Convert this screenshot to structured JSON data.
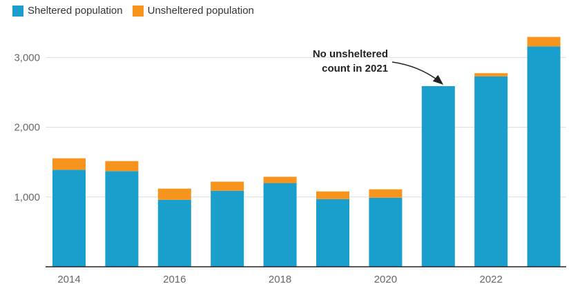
{
  "chart_data": {
    "type": "bar",
    "stacked": true,
    "years": [
      2014,
      2015,
      2016,
      2017,
      2018,
      2019,
      2020,
      2021,
      2022,
      2023
    ],
    "x_tick_labels": [
      "2014",
      "2016",
      "2018",
      "2020",
      "2022"
    ],
    "x_tick_years": [
      2014,
      2016,
      2018,
      2020,
      2022
    ],
    "y_ticks": [
      1000,
      2000,
      3000
    ],
    "y_tick_labels": [
      "1,000",
      "2,000",
      "3,000"
    ],
    "ylim": [
      0,
      3350
    ],
    "grid": true,
    "legend_position": "top-left",
    "series": [
      {
        "name": "Sheltered population",
        "color": "#1a9fcd",
        "values": [
          1390,
          1370,
          960,
          1090,
          1200,
          970,
          990,
          2590,
          2730,
          3160
        ]
      },
      {
        "name": "Unsheltered population",
        "color": "#f7941d",
        "values": [
          165,
          145,
          160,
          130,
          90,
          110,
          120,
          0,
          45,
          135
        ]
      }
    ],
    "annotation": {
      "lines": [
        "No unsheltered",
        "count in 2021"
      ],
      "target_year": 2021
    }
  }
}
